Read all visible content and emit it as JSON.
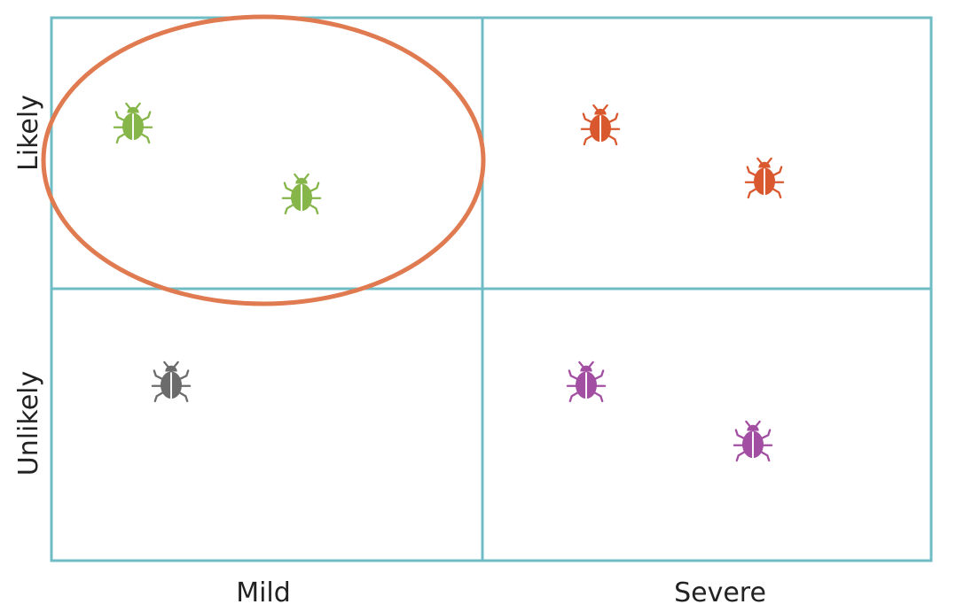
{
  "y_labels": [
    "Likely",
    "Unlikely"
  ],
  "x_labels": [
    "Mild",
    "Severe"
  ]
}
